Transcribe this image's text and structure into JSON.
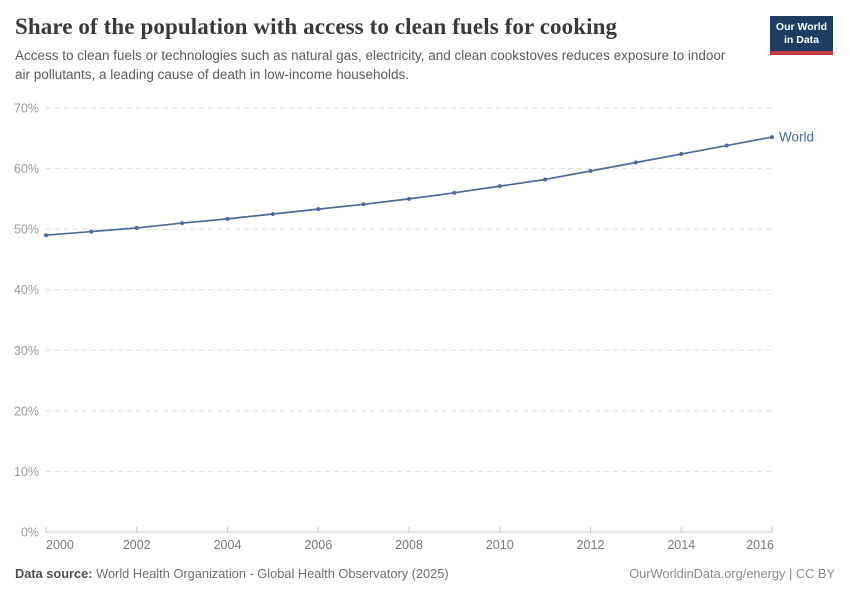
{
  "header": {
    "title": "Share of the population with access to clean fuels for cooking",
    "subtitle": "Access to clean fuels or technologies such as natural gas, electricity, and clean cookstoves reduces exposure to indoor air pollutants, a leading cause of death in low-income households.",
    "logo": {
      "line1": "Our World",
      "line2": "in Data"
    }
  },
  "chart_data": {
    "type": "line",
    "title": "Share of the population with access to clean fuels for cooking",
    "xlabel": "",
    "ylabel": "",
    "ylim": [
      0,
      70
    ],
    "yticks": [
      0,
      10,
      20,
      30,
      40,
      50,
      60,
      70
    ],
    "ytick_suffix": "%",
    "xticks": [
      2000,
      2002,
      2004,
      2006,
      2008,
      2010,
      2012,
      2014,
      2016
    ],
    "x": [
      2000,
      2001,
      2002,
      2003,
      2004,
      2005,
      2006,
      2007,
      2008,
      2009,
      2010,
      2011,
      2012,
      2013,
      2014,
      2015,
      2016
    ],
    "series": [
      {
        "name": "World",
        "color": "#4c6a9c",
        "label_color": "#4668a5",
        "values": [
          49.0,
          49.6,
          50.2,
          51.0,
          51.7,
          52.5,
          53.3,
          54.1,
          55.0,
          56.0,
          57.1,
          58.2,
          59.6,
          61.0,
          62.4,
          63.8,
          65.2
        ]
      }
    ],
    "grid": "horizontal-dashed",
    "gridline_color": "#dedede",
    "axis_color": "#c7c7c7",
    "ytick_label_color": "#9a9a9a",
    "xtick_label_color": "#787878",
    "legend_position": "end-of-line"
  },
  "footer": {
    "source_label": "Data source:",
    "source_text": "World Health Organization - Global Health Observatory (2025)",
    "attribution": "OurWorldinData.org/energy | CC BY"
  },
  "colors": {
    "brand_navy": "#1d3d63",
    "brand_red": "#c23a44",
    "title_text": "#3a3a3a",
    "subtitle_text": "#5b5b5b"
  }
}
